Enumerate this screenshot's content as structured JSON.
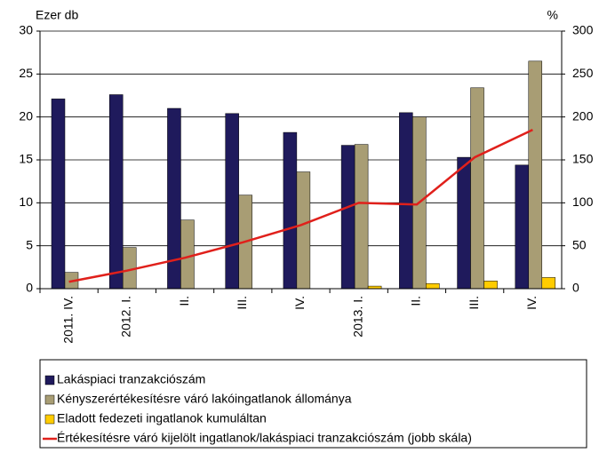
{
  "chart_data": {
    "type": "bar",
    "y_label": "Ezer db",
    "y2_label": "%",
    "categories": [
      "2011. IV.",
      "2012. I.",
      "II.",
      "III.",
      "IV.",
      "2013. I.",
      "II.",
      "III.",
      "IV."
    ],
    "series": [
      {
        "name": "Lakáspiaci tranzakciószám",
        "color": "#1f1a5c",
        "values": [
          22.1,
          22.6,
          21.0,
          20.4,
          18.2,
          16.7,
          20.5,
          15.3,
          14.4
        ]
      },
      {
        "name": "Kényszerértékesítésre váró lakóingatlanok állománya",
        "color": "#a89d74",
        "values": [
          1.9,
          4.8,
          8.0,
          10.9,
          13.6,
          16.8,
          20.0,
          23.4,
          26.5
        ]
      },
      {
        "name": "Eladott fedezeti ingatlanok kumuláltan",
        "color": "#ffcc00",
        "values": [
          0,
          0,
          0,
          0,
          0,
          0.3,
          0.6,
          0.9,
          1.3
        ]
      },
      {
        "name": "Értékesítésre váró kijelölt ingatlanok/lakáspiaci tranzakciószám (jobb skála)",
        "color": "#e0201b",
        "type": "line",
        "axis": "y2",
        "values": [
          8,
          21,
          36,
          54,
          74,
          100,
          98,
          153,
          185
        ]
      }
    ],
    "ylim": [
      0,
      30
    ],
    "yticks": [
      0,
      5,
      10,
      15,
      20,
      25,
      30
    ],
    "y2lim": [
      0,
      300
    ],
    "y2ticks": [
      0,
      50,
      100,
      150,
      200,
      250,
      300
    ]
  }
}
